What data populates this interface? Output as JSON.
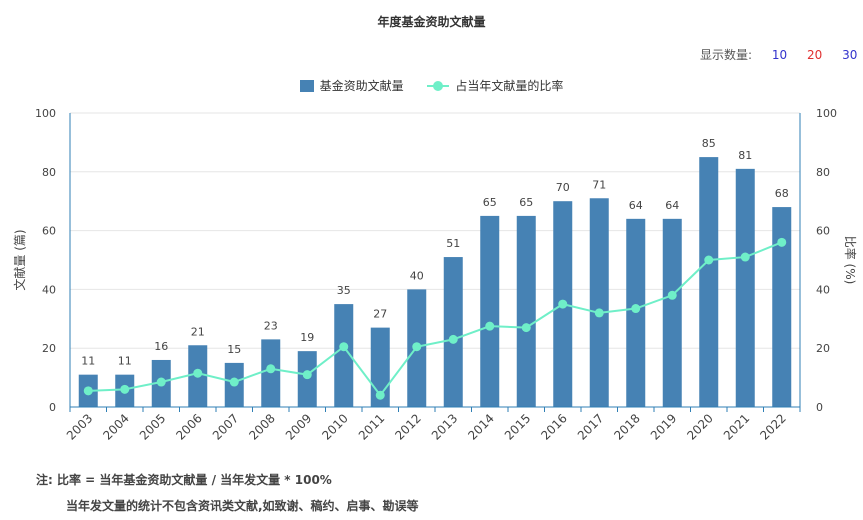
{
  "title": "年度基金资助文献量",
  "display_count": {
    "label": "显示数量:",
    "options": [
      {
        "label": "10",
        "color": "#3333cc"
      },
      {
        "label": "20",
        "color": "#e03030"
      },
      {
        "label": "30",
        "color": "#3333cc"
      }
    ]
  },
  "legend": {
    "bar_label": "基金资助文献量",
    "line_label": "占当年文献量的比率"
  },
  "colors": {
    "bar": "#4682b4",
    "line": "#6fefc8",
    "axis": "#2f7fb5",
    "grid": "#e6e6e6"
  },
  "notes": {
    "line1": "注:  比率 = 当年基金资助文献量 / 当年发文量 * 100%",
    "line2": "当年发文量的统计不包含资讯类文献,如致谢、稿约、启事、勘误等"
  },
  "chart_data": {
    "type": "bar",
    "title": "年度基金资助文献量",
    "categories": [
      "2003",
      "2004",
      "2005",
      "2006",
      "2007",
      "2008",
      "2009",
      "2010",
      "2011",
      "2012",
      "2013",
      "2014",
      "2015",
      "2016",
      "2017",
      "2018",
      "2019",
      "2020",
      "2021",
      "2022"
    ],
    "series": [
      {
        "name": "基金资助文献量",
        "type": "bar",
        "axis": "left",
        "values": [
          11,
          11,
          16,
          21,
          15,
          23,
          19,
          35,
          27,
          40,
          51,
          65,
          65,
          70,
          71,
          64,
          64,
          85,
          81,
          68
        ]
      },
      {
        "name": "占当年文献量的比率",
        "type": "line",
        "axis": "right",
        "values": [
          5.5,
          6,
          8.5,
          11.5,
          8.5,
          13,
          11,
          20.5,
          4,
          20.5,
          23,
          27.5,
          27,
          35,
          32,
          33.5,
          38,
          50,
          51,
          56
        ]
      }
    ],
    "ylabel_left": "文献量 (篇)",
    "ylabel_right": "比率 (%)",
    "ylim_left": [
      0,
      100
    ],
    "ylim_right": [
      0,
      100
    ],
    "yticks": [
      0,
      20,
      40,
      60,
      80,
      100
    ],
    "grid": true,
    "legend_position": "top-center"
  }
}
